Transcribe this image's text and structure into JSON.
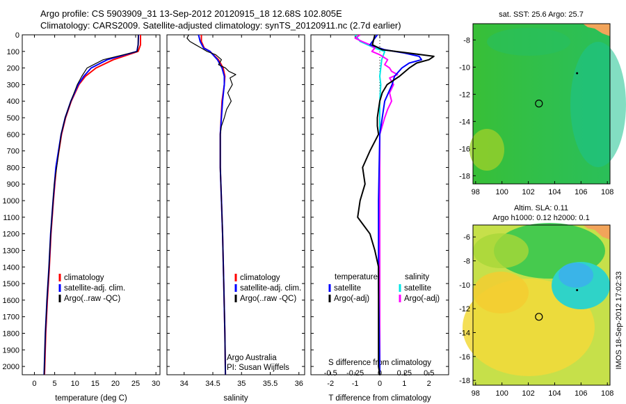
{
  "titles": {
    "line1": "Argo profile: CS 5903909_31 13-Sep-2012 20120915_18 12.68S 102.805E",
    "line2": "Climatology: CARS2009. Satellite-adjusted climatology: synTS_20120911.nc (2.7d earlier)"
  },
  "colors": {
    "climatology": "#ff0000",
    "satellite": "#0000ff",
    "argo": "#000000",
    "salinity_satellite": "#00e5e5",
    "salinity_argo": "#ff00ff"
  },
  "chart_data": [
    {
      "type": "line",
      "name": "temperature-profile",
      "xlabel": "temperature (deg C)",
      "xticks": [
        "0",
        "5",
        "10",
        "15",
        "20",
        "25",
        "30"
      ],
      "xlim": [
        -3,
        31
      ],
      "ylim": [
        0,
        2050
      ],
      "yticks": [
        "0",
        "100",
        "200",
        "300",
        "400",
        "500",
        "600",
        "700",
        "800",
        "900",
        "1000",
        "1100",
        "1200",
        "1300",
        "1400",
        "1500",
        "1600",
        "1700",
        "1800",
        "1900",
        "2000"
      ],
      "legend": [
        "climatology",
        "satellite-adj. clim.",
        "Argo(..raw -QC)"
      ],
      "series": [
        {
          "name": "climatology",
          "depth": [
            0,
            60,
            100,
            150,
            200,
            250,
            300,
            400,
            500,
            600,
            800,
            1000,
            1200,
            1400,
            1600,
            1800,
            2050
          ],
          "values": [
            26.2,
            26.2,
            25.6,
            19.5,
            15.2,
            12.6,
            11.0,
            9.1,
            7.7,
            6.7,
            5.4,
            4.7,
            4.1,
            3.7,
            3.2,
            2.8,
            2.5
          ]
        },
        {
          "name": "satellite-adj. clim.",
          "depth": [
            0,
            60,
            100,
            150,
            200,
            250,
            300,
            400,
            500,
            600,
            800,
            1000,
            1200,
            1400,
            1600,
            1800,
            2050
          ],
          "values": [
            25.7,
            25.6,
            25.3,
            18.0,
            14.0,
            12.2,
            10.8,
            9.0,
            7.6,
            6.6,
            5.3,
            4.6,
            4.0,
            3.6,
            3.1,
            2.7,
            2.4
          ]
        },
        {
          "name": "Argo(..raw -QC)",
          "depth": [
            0,
            60,
            100,
            150,
            200,
            250,
            300,
            400,
            500,
            600,
            800,
            900,
            1000,
            1200,
            1400,
            1600,
            1800,
            2050
          ],
          "values": [
            25.6,
            25.6,
            25.4,
            17.0,
            13.0,
            11.7,
            10.6,
            9.0,
            7.6,
            6.6,
            5.5,
            4.9,
            4.6,
            4.0,
            3.6,
            3.1,
            2.7,
            2.4
          ]
        }
      ]
    },
    {
      "type": "line",
      "name": "salinity-profile",
      "xlabel": "salinity",
      "xticks": [
        "34",
        "34.5",
        "35",
        "35.5",
        "36"
      ],
      "xlim": [
        33.7,
        36.1
      ],
      "ylim": [
        0,
        2050
      ],
      "legend": [
        "climatology",
        "satellite-adj. clim.",
        "Argo(..raw -QC)"
      ],
      "annotations": [
        "Argo Australia",
        "PI: Susan Wijffels"
      ],
      "series": [
        {
          "name": "climatology",
          "depth": [
            0,
            40,
            80,
            100,
            150,
            200,
            250,
            300,
            400,
            600,
            800,
            1000,
            1200,
            1500,
            1800,
            2050
          ],
          "values": [
            34.3,
            34.3,
            34.35,
            34.45,
            34.6,
            34.68,
            34.71,
            34.7,
            34.66,
            34.63,
            34.63,
            34.65,
            34.67,
            34.69,
            34.71,
            34.72
          ]
        },
        {
          "name": "satellite-adj. clim.",
          "depth": [
            0,
            40,
            80,
            100,
            150,
            200,
            250,
            300,
            400,
            600,
            800,
            1000,
            1200,
            1500,
            1800,
            2050
          ],
          "values": [
            34.25,
            34.28,
            34.34,
            34.45,
            34.58,
            34.66,
            34.7,
            34.7,
            34.67,
            34.63,
            34.63,
            34.65,
            34.67,
            34.69,
            34.71,
            34.72
          ]
        },
        {
          "name": "Argo(..raw -QC)",
          "depth": [
            0,
            20,
            40,
            60,
            80,
            100,
            120,
            150,
            180,
            200,
            220,
            240,
            260,
            300,
            350,
            400,
            450,
            500,
            550,
            600,
            800,
            1000,
            1200,
            1500,
            1800,
            2050
          ],
          "values": [
            34.08,
            34.05,
            34.1,
            34.2,
            34.3,
            34.4,
            34.55,
            34.65,
            34.6,
            34.72,
            34.78,
            34.9,
            34.8,
            34.84,
            34.76,
            34.82,
            34.74,
            34.7,
            34.65,
            34.63,
            34.63,
            34.65,
            34.67,
            34.69,
            34.71,
            34.72
          ]
        }
      ]
    },
    {
      "type": "line",
      "name": "difference-profile",
      "xlabel": "T difference from climatology",
      "xticks": [
        "-2",
        "-1",
        "0",
        "1",
        "2"
      ],
      "xlim": [
        -2.8,
        2.8
      ],
      "top_axis_label": "S difference from climatology",
      "top_ticks": [
        "-0.5",
        "-0.25",
        "0",
        "0.25",
        "0.5"
      ],
      "ylim": [
        0,
        2050
      ],
      "legend_temperature": [
        "temperature",
        "satellite",
        "Argo(-adj)"
      ],
      "legend_salinity": [
        "salinity",
        "satellite",
        "Argo(-adj)"
      ],
      "series": [
        {
          "name": "temperature satellite",
          "depth": [
            0,
            60,
            90,
            110,
            130,
            150,
            170,
            200,
            250,
            300,
            400,
            600,
            1000,
            1500,
            2000,
            2050
          ],
          "values": [
            -0.1,
            -0.4,
            0.2,
            1.0,
            1.6,
            1.7,
            1.2,
            0.9,
            0.6,
            0.5,
            0.2,
            0.0,
            -0.05,
            -0.05,
            0.0,
            0.0
          ]
        },
        {
          "name": "temperature Argo(-adj)",
          "depth": [
            0,
            60,
            90,
            110,
            130,
            150,
            170,
            200,
            250,
            300,
            350,
            400,
            450,
            500,
            550,
            600,
            700,
            800,
            900,
            1000,
            1100,
            1200,
            1300,
            1400,
            1500,
            1700,
            2000,
            2050
          ],
          "values": [
            -0.2,
            -0.3,
            0.1,
            1.2,
            2.2,
            2.0,
            1.5,
            1.2,
            0.8,
            0.3,
            0.1,
            0.0,
            -0.05,
            -0.1,
            -0.1,
            -0.05,
            -0.4,
            -0.7,
            -0.6,
            -0.8,
            -0.9,
            -0.4,
            -0.2,
            -0.05,
            -0.05,
            -0.05,
            -0.05,
            0.0
          ]
        },
        {
          "name": "salinity satellite",
          "depth": [
            0,
            40,
            80,
            100,
            150,
            200,
            250,
            300,
            400,
            600,
            1000,
            1500,
            2000,
            2050
          ],
          "values": [
            -0.25,
            -0.2,
            -0.05,
            0.05,
            0.02,
            0.01,
            0.0,
            0.01,
            0.0,
            0.0,
            0.0,
            0.0,
            0.0,
            0.0
          ]
        },
        {
          "name": "salinity Argo(-adj)",
          "depth": [
            0,
            20,
            40,
            60,
            80,
            100,
            120,
            150,
            180,
            200,
            220,
            240,
            260,
            300,
            350,
            400,
            450,
            500,
            600,
            800,
            1000,
            1500,
            2000,
            2050
          ],
          "values": [
            -0.2,
            -0.25,
            -0.18,
            -0.1,
            -0.05,
            -0.08,
            0.0,
            0.08,
            0.05,
            0.1,
            0.12,
            0.18,
            0.1,
            0.14,
            0.1,
            0.12,
            0.08,
            0.05,
            0.0,
            0.0,
            0.0,
            0.0,
            0.0,
            0.0
          ]
        }
      ]
    },
    {
      "type": "heatmap",
      "name": "sst-map",
      "title": "sat. SST: 25.6  Argo: 25.7",
      "xticks": [
        "98",
        "100",
        "102",
        "104",
        "106",
        "108"
      ],
      "yticks": [
        "-8",
        "-10",
        "-12",
        "-14",
        "-16",
        "-18"
      ],
      "xlim": [
        97.8,
        108.2
      ],
      "ylim": [
        -18.6,
        -6.8
      ],
      "float_position": {
        "lon": 102.805,
        "lat": -12.68
      }
    },
    {
      "type": "heatmap",
      "name": "sla-map",
      "title_line1": "Altim. SLA: 0.11",
      "title_line2": "Argo h1000: 0.12 h2000: 0.1",
      "xticks": [
        "98",
        "100",
        "102",
        "104",
        "106",
        "108"
      ],
      "yticks": [
        "-6",
        "-8",
        "-10",
        "-12",
        "-14",
        "-16",
        "-18"
      ],
      "xlim": [
        97.8,
        108.2
      ],
      "ylim": [
        -18.4,
        -5.0
      ],
      "float_position": {
        "lon": 102.805,
        "lat": -12.68
      }
    }
  ],
  "watermark": "IMOS 18-Sep-2012 17:02:33"
}
